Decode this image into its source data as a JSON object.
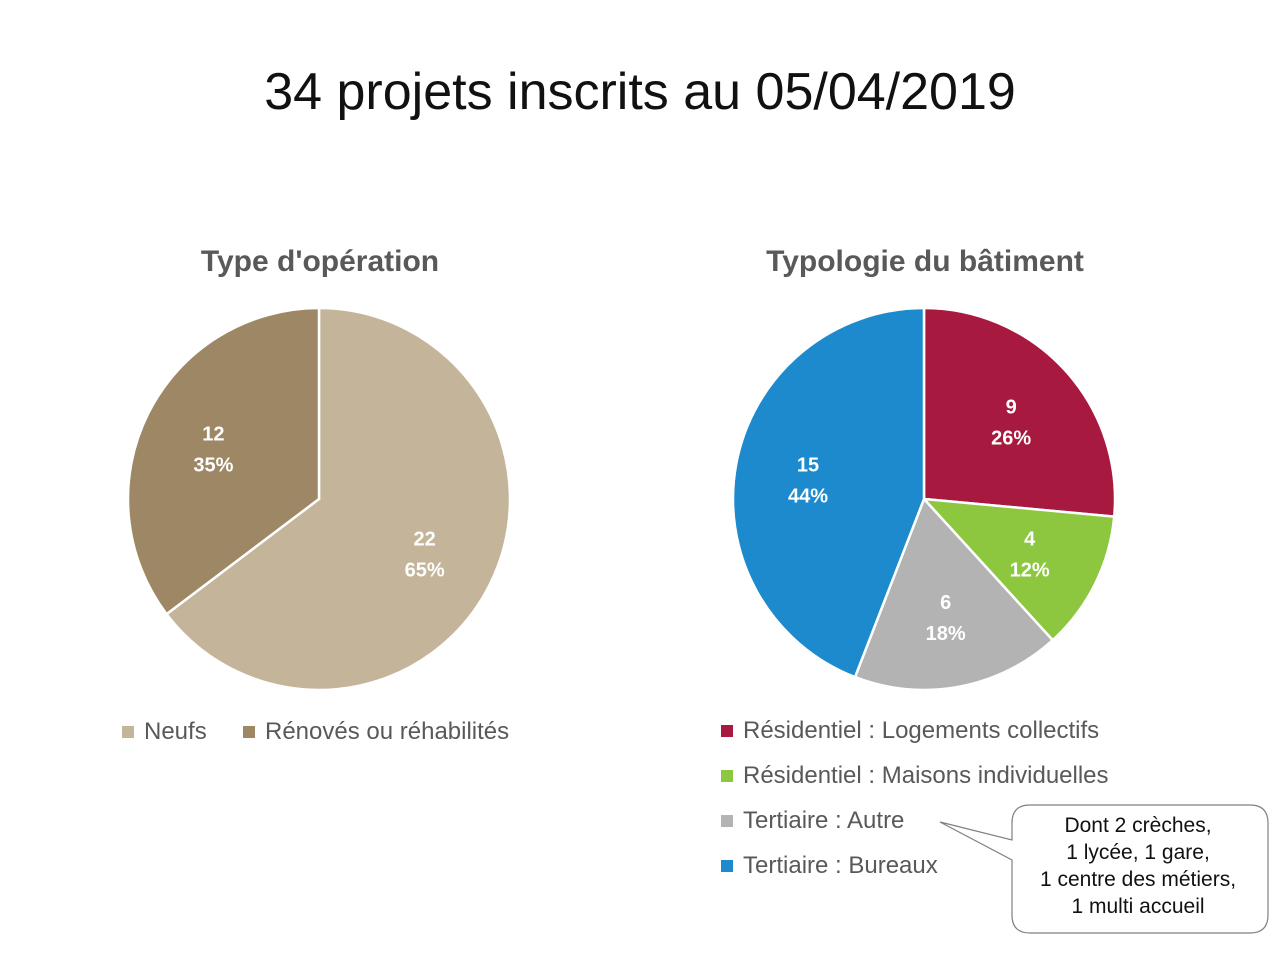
{
  "title": "34 projets inscrits au 05/04/2019",
  "chart_data": [
    {
      "type": "pie",
      "title": "Type d'opération",
      "slices": [
        {
          "name": "Neufs",
          "value": 22,
          "percent": "65%",
          "color": "#C4B49A"
        },
        {
          "name": "Rénovés ou réhabilités",
          "value": 12,
          "percent": "35%",
          "color": "#9E8765"
        }
      ],
      "legend_position": "bottom"
    },
    {
      "type": "pie",
      "title": "Typologie du bâtiment",
      "slices": [
        {
          "name": "Résidentiel : Logements collectifs",
          "value": 9,
          "percent": "26%",
          "color": "#A8193F"
        },
        {
          "name": "Résidentiel : Maisons individuelles",
          "value": 4,
          "percent": "12%",
          "color": "#8DC63F"
        },
        {
          "name": "Tertiaire : Autre",
          "value": 6,
          "percent": "18%",
          "color": "#B3B3B3"
        },
        {
          "name": "Tertiaire : Bureaux",
          "value": 15,
          "percent": "44%",
          "color": "#1C8ACD"
        }
      ],
      "legend_position": "bottom"
    }
  ],
  "callout": {
    "lines": [
      "Dont 2 crèches,",
      "1 lycée, 1 gare,",
      "1 centre des métiers,",
      "1 multi accueil"
    ]
  }
}
